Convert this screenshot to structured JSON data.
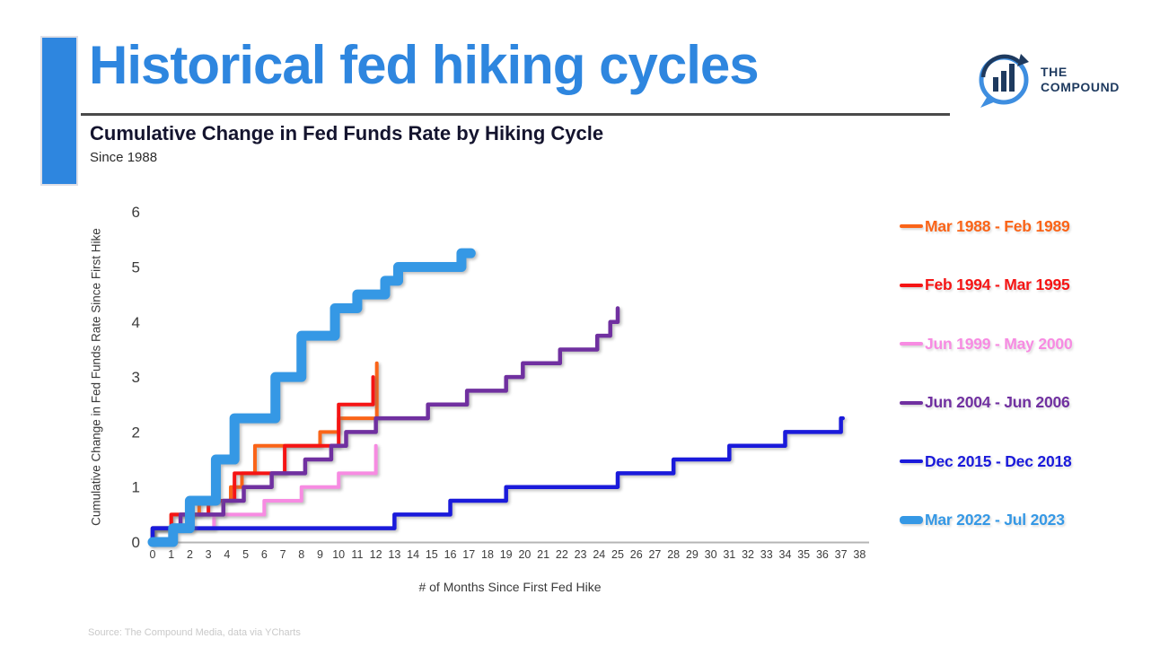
{
  "header": {
    "title": "Historical fed hiking cycles",
    "title_color": "#2E86DF",
    "accent_bar_color": "#2E86DF",
    "subtitle": "Cumulative Change in Fed Funds Rate by Hiking Cycle",
    "subtitle_note": "Since 1988",
    "logo": {
      "name": "The Compound",
      "line1": "THE",
      "line2": "COMPOUND",
      "icon_blue": "#3E8EE0",
      "navy": "#1E3A5F"
    }
  },
  "footer": {
    "source": "Source: The Compound Media, data via YCharts"
  },
  "chart_data": {
    "type": "line",
    "subtype": "step",
    "title": "Cumulative Change in Fed Funds Rate by Hiking Cycle",
    "subtitle": "Since 1988",
    "xlabel": "# of Months Since First Fed Hike",
    "ylabel": "Cumulative Change in Fed Funds Rate Since First Hike",
    "xlim": [
      0,
      38
    ],
    "ylim": [
      0,
      6
    ],
    "x_ticks": [
      0,
      1,
      2,
      3,
      4,
      5,
      6,
      7,
      8,
      9,
      10,
      11,
      12,
      13,
      14,
      15,
      16,
      17,
      18,
      19,
      20,
      21,
      22,
      23,
      24,
      25,
      26,
      27,
      28,
      29,
      30,
      31,
      32,
      33,
      34,
      35,
      36,
      37,
      38
    ],
    "y_ticks": [
      0,
      1,
      2,
      3,
      4,
      5,
      6
    ],
    "grid": false,
    "legend_position": "right",
    "axis_color": "#B4B4B4",
    "tick_color": "#3C3C3C",
    "series": [
      {
        "name": "Mar 1988 - Feb 1989",
        "color": "#FA6418",
        "width": 4,
        "points": [
          [
            0,
            0.25
          ],
          [
            1,
            0.5
          ],
          [
            2.5,
            0.75
          ],
          [
            4.2,
            1.0
          ],
          [
            4.8,
            1.25
          ],
          [
            5.5,
            1.75
          ],
          [
            9,
            2.0
          ],
          [
            10,
            2.25
          ],
          [
            12.05,
            3.25
          ]
        ],
        "end": 12.05
      },
      {
        "name": "Feb 1994 - Mar 1995",
        "color": "#F51414",
        "width": 4,
        "points": [
          [
            0,
            0.25
          ],
          [
            1,
            0.5
          ],
          [
            3,
            0.75
          ],
          [
            4.4,
            1.25
          ],
          [
            7.1,
            1.75
          ],
          [
            10,
            2.5
          ],
          [
            11.85,
            3.0
          ]
        ],
        "end": 11.85
      },
      {
        "name": "Jun 1999 - May 2000",
        "color": "#F78BE2",
        "width": 4,
        "points": [
          [
            0,
            0.25
          ],
          [
            3.3,
            0.5
          ],
          [
            6,
            0.75
          ],
          [
            8,
            1.0
          ],
          [
            10,
            1.25
          ],
          [
            12,
            1.75
          ]
        ],
        "end": 12
      },
      {
        "name": "Jun 2004 - Jun 2006",
        "color": "#7030A0",
        "width": 4.5,
        "points": [
          [
            0,
            0.25
          ],
          [
            1.5,
            0.5
          ],
          [
            3.8,
            0.75
          ],
          [
            4.9,
            1.0
          ],
          [
            6.4,
            1.25
          ],
          [
            8.2,
            1.5
          ],
          [
            9.6,
            1.75
          ],
          [
            10.4,
            2.0
          ],
          [
            12,
            2.25
          ],
          [
            14.8,
            2.5
          ],
          [
            16.9,
            2.75
          ],
          [
            19,
            3.0
          ],
          [
            19.9,
            3.25
          ],
          [
            21.9,
            3.5
          ],
          [
            23.9,
            3.75
          ],
          [
            24.6,
            4.0
          ],
          [
            25,
            4.25
          ]
        ],
        "end": 25
      },
      {
        "name": "Dec 2015 - Dec 2018",
        "color": "#1A1ADB",
        "width": 4.5,
        "points": [
          [
            0,
            0.25
          ],
          [
            13,
            0.5
          ],
          [
            16,
            0.75
          ],
          [
            19,
            1.0
          ],
          [
            25,
            1.25
          ],
          [
            28,
            1.5
          ],
          [
            31,
            1.75
          ],
          [
            34,
            2.0
          ],
          [
            37,
            2.25
          ]
        ],
        "end": 37.1
      },
      {
        "name": "Mar 2022 - Jul 2023",
        "color": "#3598E5",
        "width": 11,
        "points": [
          [
            0,
            0
          ],
          [
            1.1,
            0.25
          ],
          [
            2,
            0.75
          ],
          [
            3.4,
            1.5
          ],
          [
            4.4,
            2.25
          ],
          [
            6.6,
            3.0
          ],
          [
            8,
            3.75
          ],
          [
            9.8,
            4.25
          ],
          [
            11,
            4.5
          ],
          [
            12.5,
            4.75
          ],
          [
            13.2,
            5.0
          ],
          [
            16.6,
            5.25
          ]
        ],
        "end": 17.1
      }
    ]
  }
}
